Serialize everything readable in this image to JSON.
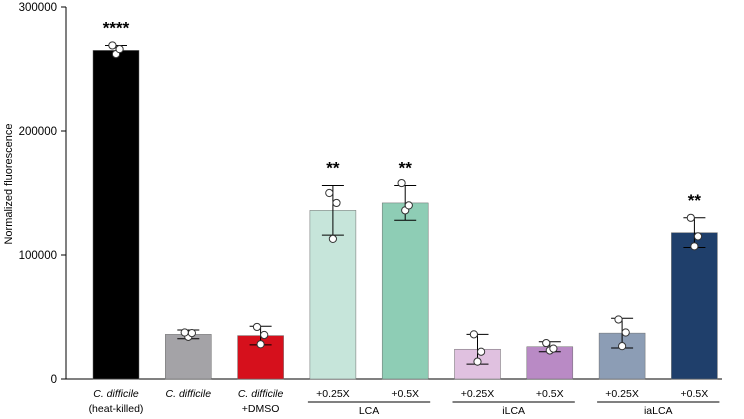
{
  "chart_data": {
    "type": "bar",
    "title": "",
    "xlabel": "",
    "ylabel": "Normalized fluorescence",
    "ylim": [
      0,
      300000
    ],
    "yticks": [
      0,
      100000,
      200000,
      300000
    ],
    "ytick_labels": [
      "0",
      "100000",
      "200000",
      "300000"
    ],
    "grid": false,
    "legend": "none",
    "categories": [
      {
        "line1": "C. difficile",
        "line2": "(heat-killed)",
        "italic_line1": true
      },
      {
        "line1": "C. difficile",
        "line2": "",
        "italic_line1": true
      },
      {
        "line1": "C. difficile",
        "line2": "+DMSO",
        "italic_line1": true
      },
      {
        "line1": "+0.25X",
        "line2": "",
        "italic_line1": false
      },
      {
        "line1": "+0.5X",
        "line2": "",
        "italic_line1": false
      },
      {
        "line1": "+0.25X",
        "line2": "",
        "italic_line1": false
      },
      {
        "line1": "+0.5X",
        "line2": "",
        "italic_line1": false
      },
      {
        "line1": "+0.25X",
        "line2": "",
        "italic_line1": false
      },
      {
        "line1": "+0.5X",
        "line2": "",
        "italic_line1": false
      }
    ],
    "groups": [
      {
        "label": "LCA",
        "from": 3,
        "to": 4
      },
      {
        "label": "iLCA",
        "from": 5,
        "to": 6
      },
      {
        "label": "iaLCA",
        "from": 7,
        "to": 8
      }
    ],
    "values": [
      265000,
      36000,
      35000,
      136000,
      142000,
      24000,
      26000,
      37000,
      118000
    ],
    "errors": [
      4000,
      3500,
      7500,
      20000,
      14000,
      12000,
      4000,
      12000,
      12000
    ],
    "points": [
      [
        262000,
        266000,
        269000
      ],
      [
        34000,
        37000,
        37500
      ],
      [
        28000,
        35500,
        42000
      ],
      [
        113000,
        142000,
        150000
      ],
      [
        136000,
        140000,
        158000
      ],
      [
        14000,
        22000,
        36000
      ],
      [
        23000,
        24500,
        29000
      ],
      [
        26500,
        37500,
        48000
      ],
      [
        107000,
        115000,
        130000
      ]
    ],
    "significance": [
      "****",
      "",
      "",
      "**",
      "**",
      "",
      "",
      "",
      "**"
    ],
    "colors": [
      "#000000",
      "#a4a3a7",
      "#d6101c",
      "#c6e5da",
      "#8ecdb5",
      "#e0c1e0",
      "#b98ac5",
      "#8c9db5",
      "#1f3f6b"
    ]
  }
}
